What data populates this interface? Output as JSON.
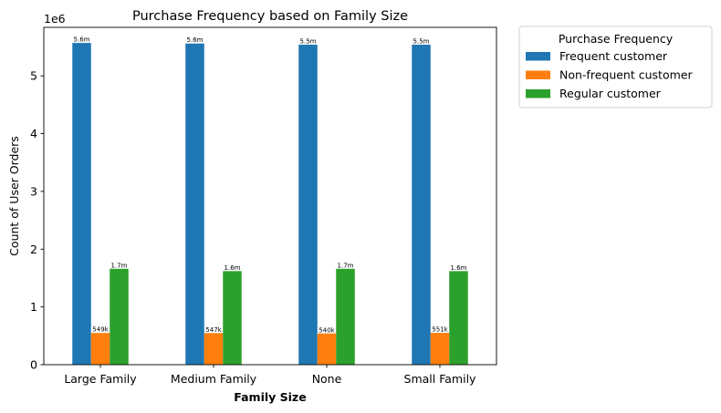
{
  "chart_data": {
    "type": "bar",
    "title": "Purchase Frequency based on Family Size",
    "xlabel": "Family Size",
    "ylabel": "Count of User Orders",
    "y_offset_label": "1e6",
    "categories": [
      "Large Family",
      "Medium Family",
      "None",
      "Small Family"
    ],
    "ylim": [
      0,
      5.84
    ],
    "yticks": [
      "0",
      "1",
      "2",
      "3",
      "4",
      "5"
    ],
    "grid": false,
    "legend": {
      "title": "Purchase Frequency",
      "placement": "outside-top-right"
    },
    "series": [
      {
        "name": "Frequent customer",
        "color": "#1f77b4",
        "values": [
          5.57,
          5.56,
          5.54,
          5.54
        ],
        "labels": [
          "5.6m",
          "5.6m",
          "5.5m",
          "5.5m"
        ]
      },
      {
        "name": "Non-frequent customer",
        "color": "#ff7f0e",
        "values": [
          0.549,
          0.547,
          0.54,
          0.551
        ],
        "labels": [
          "549k",
          "547k",
          "540k",
          "551k"
        ]
      },
      {
        "name": "Regular customer",
        "color": "#2ca02c",
        "values": [
          1.66,
          1.62,
          1.66,
          1.62
        ],
        "labels": [
          "1.7m",
          "1.6m",
          "1.7m",
          "1.6m"
        ]
      }
    ]
  }
}
